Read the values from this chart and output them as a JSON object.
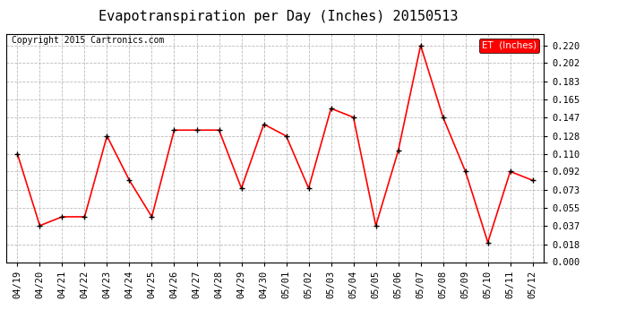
{
  "title": "Evapotranspiration per Day (Inches) 20150513",
  "copyright_text": "Copyright 2015 Cartronics.com",
  "legend_label": "ET  (Inches)",
  "legend_bg": "#ff0000",
  "legend_text_color": "#ffffff",
  "x_labels": [
    "04/19",
    "04/20",
    "04/21",
    "04/22",
    "04/23",
    "04/24",
    "04/25",
    "04/26",
    "04/27",
    "04/28",
    "04/29",
    "04/30",
    "05/01",
    "05/02",
    "05/03",
    "05/04",
    "05/05",
    "05/06",
    "05/07",
    "05/08",
    "05/09",
    "05/10",
    "05/11",
    "05/12"
  ],
  "y_values": [
    0.11,
    0.037,
    0.046,
    0.046,
    0.128,
    0.083,
    0.046,
    0.134,
    0.134,
    0.134,
    0.075,
    0.14,
    0.128,
    0.075,
    0.156,
    0.147,
    0.037,
    0.113,
    0.22,
    0.147,
    0.092,
    0.02,
    0.092,
    0.083
  ],
  "line_color": "#ff0000",
  "marker_color": "#000000",
  "marker_size": 5,
  "line_width": 1.2,
  "y_ticks": [
    0.0,
    0.018,
    0.037,
    0.055,
    0.073,
    0.092,
    0.11,
    0.128,
    0.147,
    0.165,
    0.183,
    0.202,
    0.22
  ],
  "ylim": [
    0.0,
    0.232
  ],
  "grid_color": "#bbbbbb",
  "bg_color": "#ffffff",
  "plot_bg": "#ffffff",
  "title_fontsize": 11,
  "copyright_fontsize": 7,
  "tick_fontsize": 7.5
}
